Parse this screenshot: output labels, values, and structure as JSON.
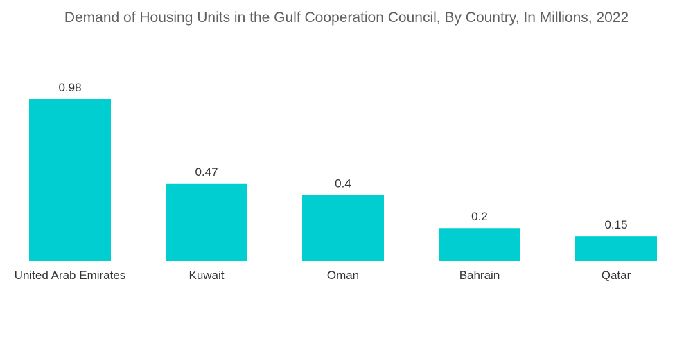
{
  "chart_data": {
    "type": "bar",
    "title": "Demand of Housing Units in the Gulf Cooperation Council, By Country, In Millions, 2022",
    "categories": [
      "United Arab Emirates",
      "Kuwait",
      "Oman",
      "Bahrain",
      "Qatar"
    ],
    "values": [
      0.98,
      0.47,
      0.4,
      0.2,
      0.15
    ],
    "value_labels": [
      "0.98",
      "0.47",
      "0.4",
      "0.2",
      "0.15"
    ],
    "xlabel": "",
    "ylabel": "",
    "ylim": [
      0,
      0.98
    ],
    "grid": false,
    "legend": "none",
    "bar_color": "#00CED1"
  }
}
